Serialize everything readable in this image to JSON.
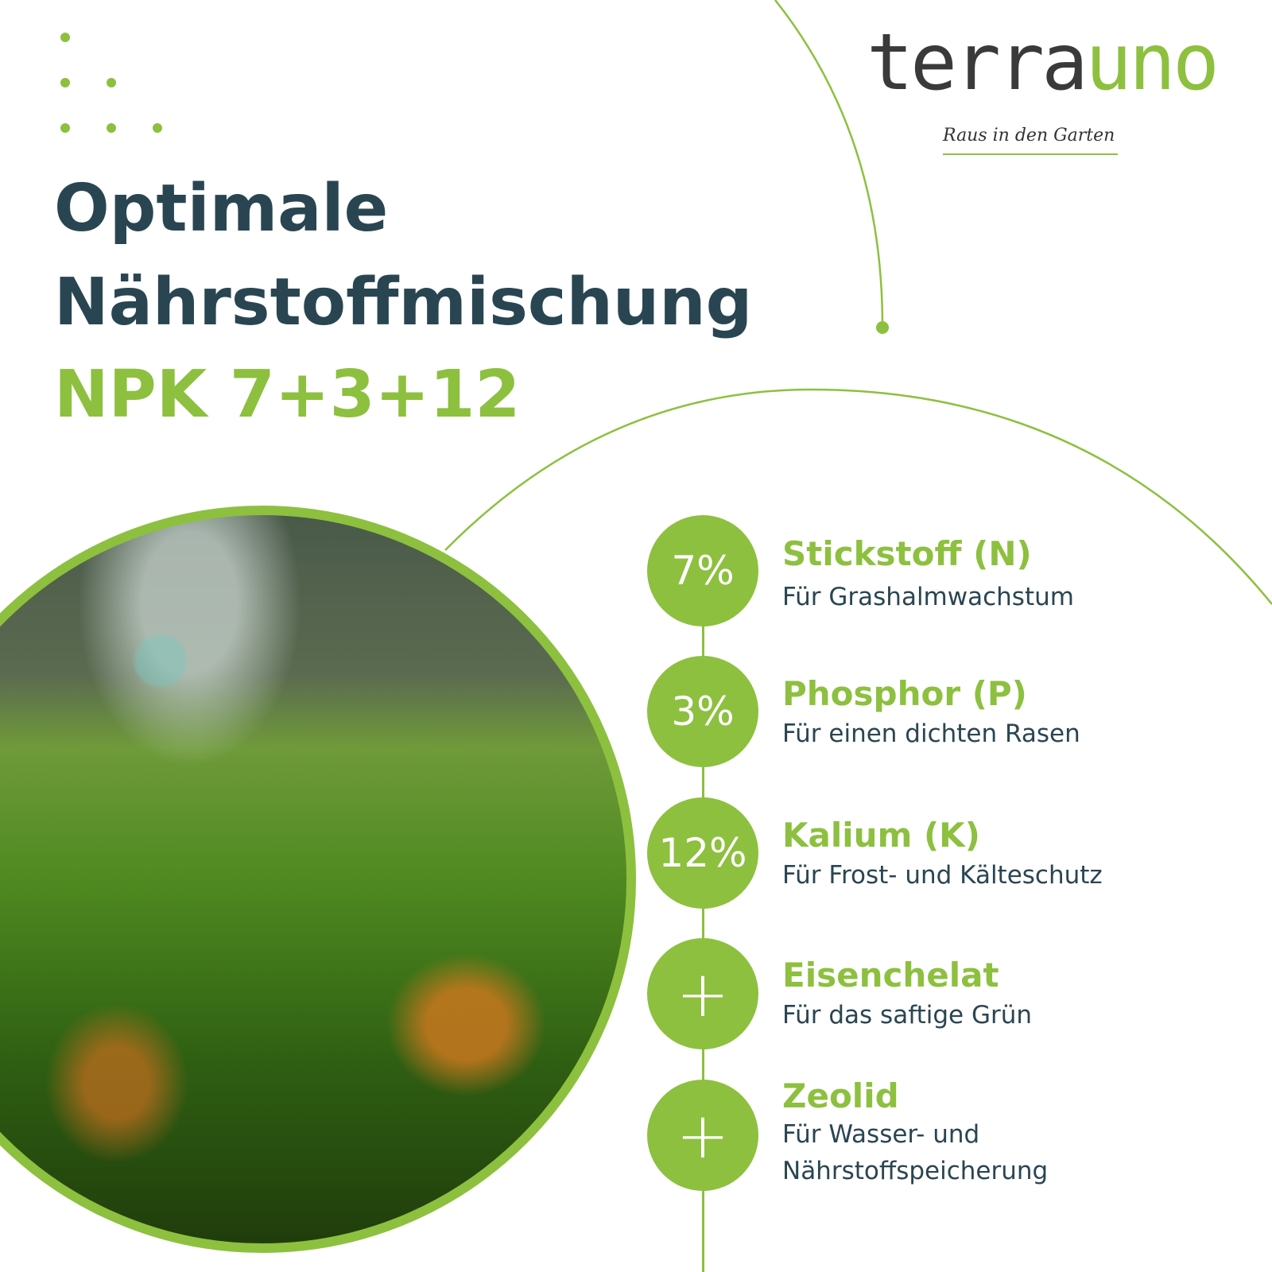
{
  "brand": {
    "logo_part1": "terra",
    "logo_part2": "uno",
    "tagline": "Raus in den Garten"
  },
  "headline": {
    "line1": "Optimale",
    "line2": "Nährstoffmischung",
    "npk": "NPK 7+3+12"
  },
  "colors": {
    "accent": "#8dc03f",
    "title": "#2a4552"
  },
  "nutrients": [
    {
      "badge": "7%",
      "name": "Stickstoff (N)",
      "description": "Für Grashalmwachstum"
    },
    {
      "badge": "3%",
      "name": "Phosphor (P)",
      "description": "Für einen dichten Rasen"
    },
    {
      "badge": "12%",
      "name": "Kalium (K)",
      "description": "Für Frost- und Kälteschutz"
    },
    {
      "badge": "+",
      "name": "Eisenchelat",
      "description": "Für das saftige Grün"
    },
    {
      "badge": "+",
      "name": "Zeolid",
      "description": "Für Wasser- und Nährstoffspeicherung",
      "description_line1": "Für Wasser- und",
      "description_line2": "Nährstoffspeicherung"
    }
  ]
}
